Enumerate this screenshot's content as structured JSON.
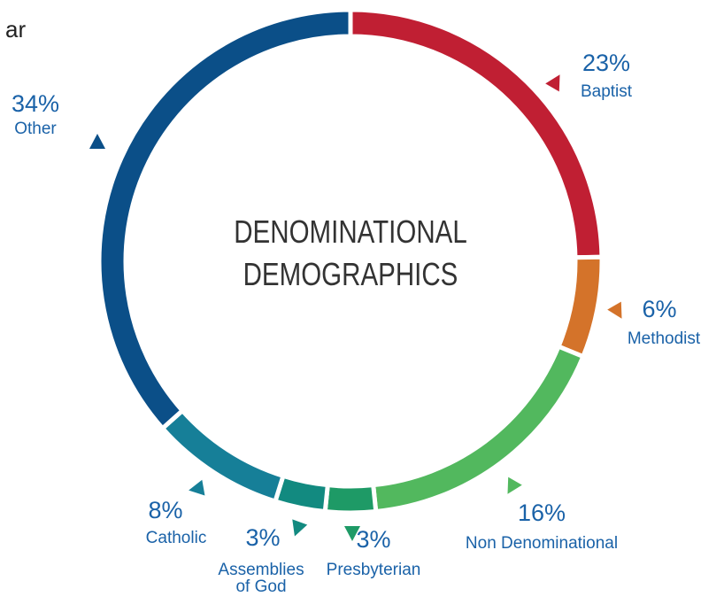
{
  "fragment": "ar",
  "chart_data": {
    "type": "donut",
    "title": "DENOMINATIONAL DEMOGRAPHICS",
    "categories": [
      "Baptist",
      "Methodist",
      "Non Denominational",
      "Presbyterian",
      "Assemblies of God",
      "Catholic",
      "Other"
    ],
    "values": [
      23,
      6,
      16,
      3,
      3,
      8,
      34
    ],
    "value_labels": [
      "23%",
      "6%",
      "16%",
      "3%",
      "3%",
      "8%",
      "34%"
    ],
    "colors": [
      "#c01f33",
      "#d4732a",
      "#52b85e",
      "#1e9a66",
      "#128a80",
      "#167f98",
      "#0b4f88"
    ]
  }
}
